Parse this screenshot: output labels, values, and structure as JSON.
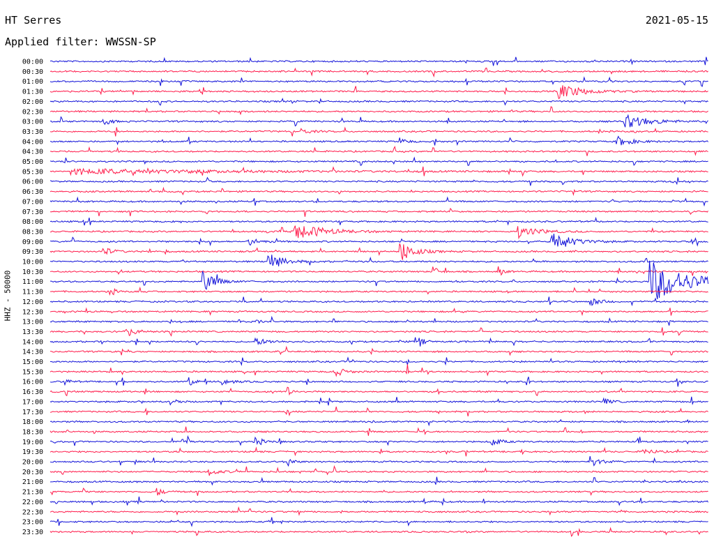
{
  "header": {
    "station": "HT Serres",
    "date": "2021-05-15",
    "filter": "Applied filter: WWSSN-SP"
  },
  "chart_data": {
    "type": "line",
    "ylabel": "HHZ - 50000",
    "colors": [
      "#1010d8",
      "#ff1a4a"
    ],
    "time_labels": [
      "00:00",
      "00:30",
      "01:00",
      "01:30",
      "02:00",
      "02:30",
      "03:00",
      "03:30",
      "04:00",
      "04:30",
      "05:00",
      "05:30",
      "06:00",
      "06:30",
      "07:00",
      "07:30",
      "08:00",
      "08:30",
      "09:00",
      "09:30",
      "10:00",
      "10:30",
      "11:00",
      "11:30",
      "12:00",
      "12:30",
      "13:00",
      "13:30",
      "14:00",
      "14:30",
      "15:00",
      "15:30",
      "16:00",
      "16:30",
      "17:00",
      "17:30",
      "18:00",
      "18:30",
      "19:00",
      "19:30",
      "20:00",
      "20:30",
      "21:00",
      "21:30",
      "22:00",
      "22:30",
      "23:00",
      "23:30"
    ],
    "events": [
      {
        "row": 3,
        "pos": 0.77,
        "amp": 1.1,
        "dur": 0.05
      },
      {
        "row": 6,
        "pos": 0.08,
        "amp": 0.6,
        "dur": 0.015
      },
      {
        "row": 6,
        "pos": 0.87,
        "amp": 1.0,
        "dur": 0.05
      },
      {
        "row": 7,
        "pos": 0.38,
        "amp": 0.4,
        "dur": 0.02
      },
      {
        "row": 8,
        "pos": 0.53,
        "amp": 0.5,
        "dur": 0.015
      },
      {
        "row": 8,
        "pos": 0.86,
        "amp": 0.7,
        "dur": 0.03
      },
      {
        "row": 11,
        "pos": 0.03,
        "amp": 0.35,
        "dur": 0.3
      },
      {
        "row": 17,
        "pos": 0.37,
        "amp": 1.2,
        "dur": 0.06
      },
      {
        "row": 17,
        "pos": 0.71,
        "amp": 0.8,
        "dur": 0.04
      },
      {
        "row": 18,
        "pos": 0.76,
        "amp": 1.6,
        "dur": 0.04
      },
      {
        "row": 18,
        "pos": 0.3,
        "amp": 0.6,
        "dur": 0.02
      },
      {
        "row": 19,
        "pos": 0.08,
        "amp": 0.6,
        "dur": 0.02
      },
      {
        "row": 19,
        "pos": 0.53,
        "amp": 1.5,
        "dur": 0.03
      },
      {
        "row": 20,
        "pos": 0.33,
        "amp": 1.3,
        "dur": 0.03
      },
      {
        "row": 21,
        "pos": 0.58,
        "amp": 1.0,
        "dur": 0.01
      },
      {
        "row": 21,
        "pos": 0.68,
        "amp": 0.8,
        "dur": 0.01
      },
      {
        "row": 22,
        "pos": 0.23,
        "amp": 1.6,
        "dur": 0.025
      },
      {
        "row": 22,
        "pos": 0.91,
        "amp": 3.0,
        "dur": 0.08
      },
      {
        "row": 23,
        "pos": 0.09,
        "amp": 0.8,
        "dur": 0.01
      },
      {
        "row": 24,
        "pos": 0.82,
        "amp": 0.6,
        "dur": 0.02
      },
      {
        "row": 26,
        "pos": 0.31,
        "amp": 0.5,
        "dur": 0.01
      },
      {
        "row": 27,
        "pos": 0.12,
        "amp": 0.5,
        "dur": 0.02
      },
      {
        "row": 28,
        "pos": 0.31,
        "amp": 0.5,
        "dur": 0.03
      },
      {
        "row": 28,
        "pos": 0.56,
        "amp": 0.8,
        "dur": 0.01
      },
      {
        "row": 31,
        "pos": 0.43,
        "amp": 0.8,
        "dur": 0.02
      },
      {
        "row": 32,
        "pos": 0.02,
        "amp": 0.7,
        "dur": 0.01
      },
      {
        "row": 32,
        "pos": 0.21,
        "amp": 0.9,
        "dur": 0.01
      },
      {
        "row": 32,
        "pos": 0.26,
        "amp": 0.5,
        "dur": 0.02
      },
      {
        "row": 33,
        "pos": 0.36,
        "amp": 0.6,
        "dur": 0.015
      },
      {
        "row": 34,
        "pos": 0.19,
        "amp": 0.4,
        "dur": 0.01
      },
      {
        "row": 34,
        "pos": 0.84,
        "amp": 0.5,
        "dur": 0.015
      },
      {
        "row": 38,
        "pos": 0.2,
        "amp": 0.6,
        "dur": 0.01
      },
      {
        "row": 38,
        "pos": 0.31,
        "amp": 0.8,
        "dur": 0.015
      },
      {
        "row": 38,
        "pos": 0.67,
        "amp": 0.6,
        "dur": 0.02
      },
      {
        "row": 39,
        "pos": 0.9,
        "amp": 0.5,
        "dur": 0.02
      },
      {
        "row": 40,
        "pos": 0.36,
        "amp": 0.8,
        "dur": 0.01
      },
      {
        "row": 40,
        "pos": 0.82,
        "amp": 0.8,
        "dur": 0.02
      },
      {
        "row": 41,
        "pos": 0.24,
        "amp": 0.5,
        "dur": 0.02
      },
      {
        "row": 43,
        "pos": 0.05,
        "amp": 0.4,
        "dur": 0.01
      },
      {
        "row": 43,
        "pos": 0.16,
        "amp": 0.6,
        "dur": 0.015
      }
    ]
  }
}
